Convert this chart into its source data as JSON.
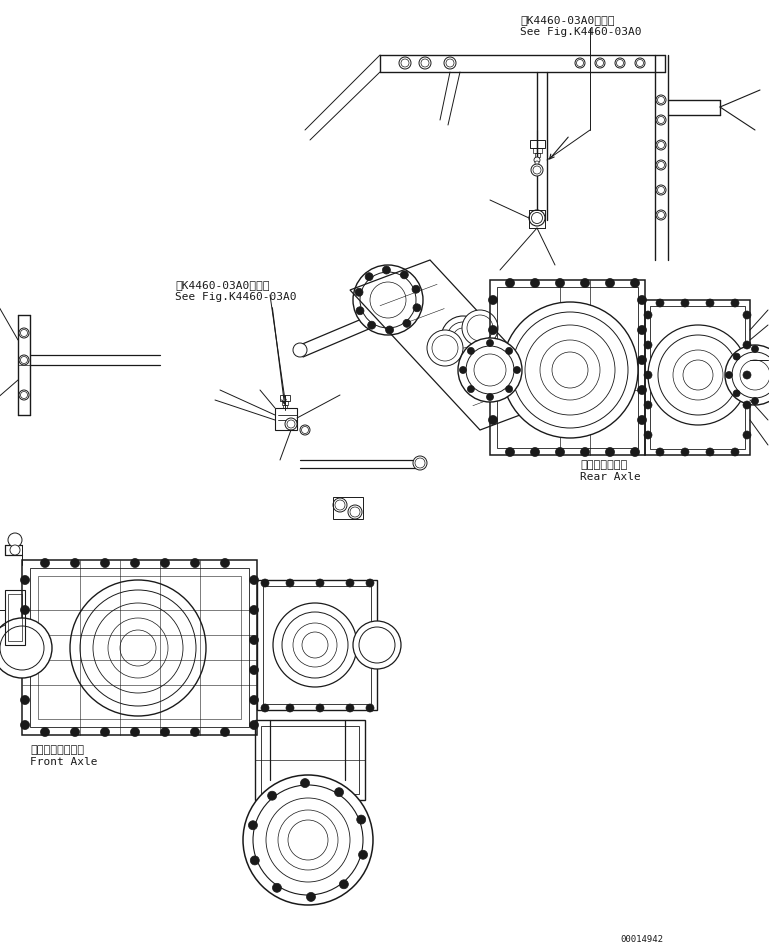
{
  "bg_color": "#ffffff",
  "line_color": "#1a1a1a",
  "figsize": [
    7.69,
    9.48
  ],
  "dpi": 100,
  "ann_upper_right_line1": "第K4460-03A0図参照",
  "ann_upper_right_line2": "See Fig.K4460-03A0",
  "ann_mid_left_line1": "第K4460-03A0図参照",
  "ann_mid_left_line2": "See Fig.K4460-03A0",
  "ann_rear_axle_line1": "リヤーアクスル",
  "ann_rear_axle_line2": "Rear Axle",
  "ann_front_axle_line1": "フロントアクスル",
  "ann_front_axle_line2": "Front Axle",
  "part_number": "00014942"
}
